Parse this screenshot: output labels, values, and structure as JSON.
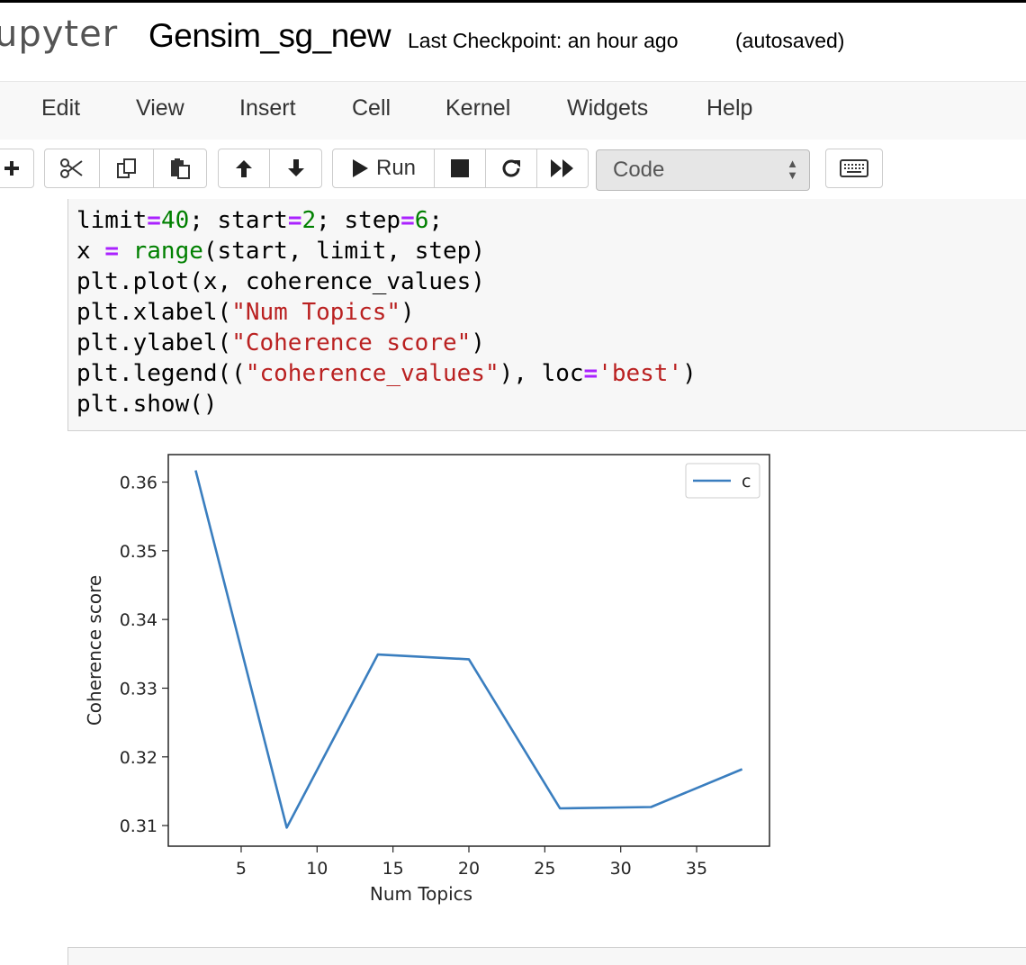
{
  "header": {
    "logo_text": "upyter",
    "notebook_name": "Gensim_sg_new",
    "checkpoint": "Last Checkpoint: an hour ago",
    "autosave": "(autosaved)"
  },
  "menubar": {
    "items": [
      "Edit",
      "View",
      "Insert",
      "Cell",
      "Kernel",
      "Widgets",
      "Help"
    ]
  },
  "toolbar": {
    "run_label": "Run",
    "cell_type": "Code",
    "icons": [
      "plus-icon",
      "scissors-icon",
      "copy-icon",
      "paste-icon",
      "arrow-up-icon",
      "arrow-down-icon",
      "run-icon",
      "stop-icon",
      "restart-icon",
      "fast-forward-icon",
      "keyboard-icon"
    ]
  },
  "code_cell": {
    "lines": [
      "limit=40; start=2; step=6;",
      "x = range(start, limit, step)",
      "plt.plot(x, coherence_values)",
      "plt.xlabel(\"Num Topics\")",
      "plt.ylabel(\"Coherence score\")",
      "plt.legend((\"coherence_values\"), loc='best')",
      "plt.show()"
    ]
  },
  "chart_data": {
    "type": "line",
    "x": [
      2,
      8,
      14,
      20,
      26,
      32,
      38
    ],
    "series": [
      {
        "name": "c",
        "values": [
          0.3617,
          0.3097,
          0.3349,
          0.3342,
          0.3125,
          0.3127,
          0.3182
        ],
        "color": "#3a7ebf"
      }
    ],
    "xlabel": "Num Topics",
    "ylabel": "Coherence score",
    "xlim": [
      0.2,
      39.8
    ],
    "ylim": [
      0.307,
      0.364
    ],
    "xticks": [
      "5",
      "10",
      "15",
      "20",
      "25",
      "30",
      "35"
    ],
    "yticks": [
      "0.31",
      "0.32",
      "0.33",
      "0.34",
      "0.35",
      "0.36"
    ],
    "legend_label": "c",
    "legend_position": "top-right",
    "grid": false
  }
}
